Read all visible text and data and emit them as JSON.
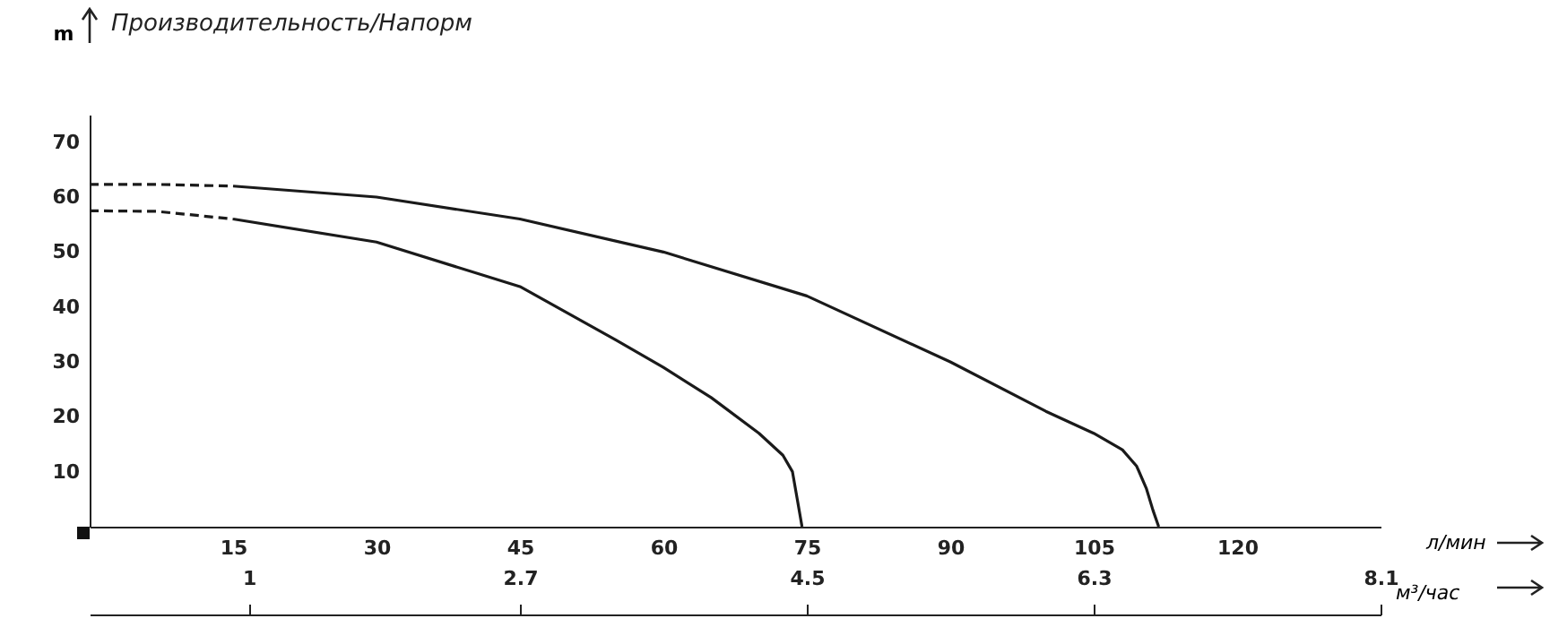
{
  "chart_data": {
    "type": "line",
    "title": "Производительность/Напорм",
    "ylabel": "m",
    "xlabel": "л/мин",
    "x2label": "м³/час",
    "xlim": [
      0,
      135
    ],
    "xticks": [
      15,
      30,
      45,
      60,
      75,
      90,
      105,
      120
    ],
    "x2lim": [
      0,
      8.1
    ],
    "x2ticks": [
      1,
      2.7,
      4.5,
      6.3,
      8.1
    ],
    "ylim": [
      0,
      75
    ],
    "yticks": [
      10,
      20,
      30,
      40,
      50,
      60,
      70
    ],
    "grid": false,
    "marker": "none",
    "series": [
      {
        "color": "#1a1a1a",
        "line_style": "dashed",
        "x": [
          0,
          7,
          15
        ],
        "values": [
          62.3,
          62.3,
          62
        ]
      },
      {
        "color": "#1a1a1a",
        "line_style": "solid",
        "x": [
          15,
          30,
          45,
          60,
          75,
          90,
          100,
          105,
          108,
          109.5,
          110.5,
          111.2,
          111.8
        ],
        "values": [
          62,
          60,
          56,
          50,
          42,
          30,
          21,
          17,
          14,
          11,
          7,
          3,
          0
        ]
      },
      {
        "color": "#1a1a1a",
        "line_style": "dashed",
        "x": [
          0,
          7,
          15
        ],
        "values": [
          57.5,
          57.4,
          56
        ]
      },
      {
        "color": "#1a1a1a",
        "line_style": "solid",
        "x": [
          15,
          30,
          45,
          55,
          60,
          65,
          70,
          72.5,
          73.5,
          74,
          74.5
        ],
        "values": [
          56,
          51.8,
          43.7,
          34,
          29,
          23.5,
          17,
          13,
          10,
          5,
          0
        ]
      }
    ]
  }
}
